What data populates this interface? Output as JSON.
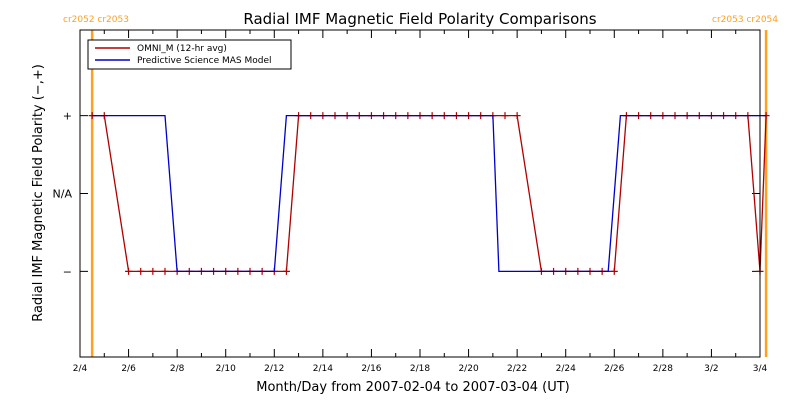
{
  "chart_data": {
    "type": "line",
    "title": "Radial IMF Magnetic Field Polarity Comparisons",
    "xlabel": "Month/Day from 2007-02-04 to 2007-03-04 (UT)",
    "ylabel": "Radial IMF Magnetic Field Polarity (−,+)",
    "x_range": [
      "2007-02-04",
      "2007-03-04"
    ],
    "x_ticks": [
      {
        "date": "2007-02-04",
        "label": "2/4"
      },
      {
        "date": "2007-02-06",
        "label": "2/6"
      },
      {
        "date": "2007-02-08",
        "label": "2/8"
      },
      {
        "date": "2007-02-10",
        "label": "2/10"
      },
      {
        "date": "2007-02-12",
        "label": "2/12"
      },
      {
        "date": "2007-02-14",
        "label": "2/14"
      },
      {
        "date": "2007-02-16",
        "label": "2/16"
      },
      {
        "date": "2007-02-18",
        "label": "2/18"
      },
      {
        "date": "2007-02-20",
        "label": "2/20"
      },
      {
        "date": "2007-02-22",
        "label": "2/22"
      },
      {
        "date": "2007-02-24",
        "label": "2/24"
      },
      {
        "date": "2007-02-26",
        "label": "2/26"
      },
      {
        "date": "2007-02-28",
        "label": "2/28"
      },
      {
        "date": "2007-03-02",
        "label": "3/2"
      },
      {
        "date": "2007-03-04",
        "label": "3/4"
      }
    ],
    "y_categories": [
      {
        "value": 1,
        "label": "+"
      },
      {
        "value": 0,
        "label": "N/A"
      },
      {
        "value": -1,
        "label": "−"
      }
    ],
    "ylim": [
      -2.1,
      2.1
    ],
    "legend_position": "top-left",
    "rotation_markers": [
      {
        "date": "2007-02-04 12:00",
        "label": "cr2052 cr2053",
        "label_side": "left"
      },
      {
        "date": "2007-03-04 06:00",
        "label": "cr2053 cr2054",
        "label_side": "right"
      }
    ],
    "marker_color": "#ffa020",
    "series": [
      {
        "name": "OMNI_M (12-hr avg)",
        "color": "#b00000",
        "marker": "plus",
        "points": [
          [
            "2007-02-04 12:00",
            1
          ],
          [
            "2007-02-05 00:00",
            1
          ],
          [
            "2007-02-06 00:00",
            -1
          ],
          [
            "2007-02-06 12:00",
            -1
          ],
          [
            "2007-02-07 00:00",
            -1
          ],
          [
            "2007-02-07 12:00",
            -1
          ],
          [
            "2007-02-08 00:00",
            -1
          ],
          [
            "2007-02-08 12:00",
            -1
          ],
          [
            "2007-02-09 00:00",
            -1
          ],
          [
            "2007-02-09 12:00",
            -1
          ],
          [
            "2007-02-10 00:00",
            -1
          ],
          [
            "2007-02-10 12:00",
            -1
          ],
          [
            "2007-02-11 00:00",
            -1
          ],
          [
            "2007-02-11 12:00",
            -1
          ],
          [
            "2007-02-12 00:00",
            -1
          ],
          [
            "2007-02-12 12:00",
            -1
          ],
          [
            "2007-02-13 00:00",
            1
          ],
          [
            "2007-02-13 12:00",
            1
          ],
          [
            "2007-02-14 00:00",
            1
          ],
          [
            "2007-02-14 12:00",
            1
          ],
          [
            "2007-02-15 00:00",
            1
          ],
          [
            "2007-02-15 12:00",
            1
          ],
          [
            "2007-02-16 00:00",
            1
          ],
          [
            "2007-02-16 12:00",
            1
          ],
          [
            "2007-02-17 00:00",
            1
          ],
          [
            "2007-02-17 12:00",
            1
          ],
          [
            "2007-02-18 00:00",
            1
          ],
          [
            "2007-02-18 12:00",
            1
          ],
          [
            "2007-02-19 00:00",
            1
          ],
          [
            "2007-02-19 12:00",
            1
          ],
          [
            "2007-02-20 00:00",
            1
          ],
          [
            "2007-02-20 12:00",
            1
          ],
          [
            "2007-02-21 00:00",
            1
          ],
          [
            "2007-02-21 12:00",
            1
          ],
          [
            "2007-02-22 00:00",
            1
          ],
          [
            "2007-02-23 00:00",
            -1
          ],
          [
            "2007-02-23 12:00",
            -1
          ],
          [
            "2007-02-24 00:00",
            -1
          ],
          [
            "2007-02-24 12:00",
            -1
          ],
          [
            "2007-02-25 00:00",
            -1
          ],
          [
            "2007-02-25 12:00",
            -1
          ],
          [
            "2007-02-26 00:00",
            -1
          ],
          [
            "2007-02-26 12:00",
            1
          ],
          [
            "2007-02-27 00:00",
            1
          ],
          [
            "2007-02-27 12:00",
            1
          ],
          [
            "2007-02-28 00:00",
            1
          ],
          [
            "2007-02-28 12:00",
            1
          ],
          [
            "2007-03-01 00:00",
            1
          ],
          [
            "2007-03-01 12:00",
            1
          ],
          [
            "2007-03-02 00:00",
            1
          ],
          [
            "2007-03-02 12:00",
            1
          ],
          [
            "2007-03-03 00:00",
            1
          ],
          [
            "2007-03-03 12:00",
            1
          ],
          [
            "2007-03-04 00:00",
            -1
          ],
          [
            "2007-03-04 06:00",
            1
          ]
        ]
      },
      {
        "name": "Predictive Science MAS Model",
        "color": "#0000cc",
        "marker": "none",
        "points": [
          [
            "2007-02-04 12:00",
            1
          ],
          [
            "2007-02-07 12:00",
            1
          ],
          [
            "2007-02-08 00:00",
            -1
          ],
          [
            "2007-02-12 00:00",
            -1
          ],
          [
            "2007-02-12 12:00",
            1
          ],
          [
            "2007-02-21 00:00",
            1
          ],
          [
            "2007-02-21 06:00",
            -1
          ],
          [
            "2007-02-25 18:00",
            -1
          ],
          [
            "2007-02-26 06:00",
            1
          ],
          [
            "2007-03-04 06:00",
            1
          ]
        ]
      }
    ]
  }
}
